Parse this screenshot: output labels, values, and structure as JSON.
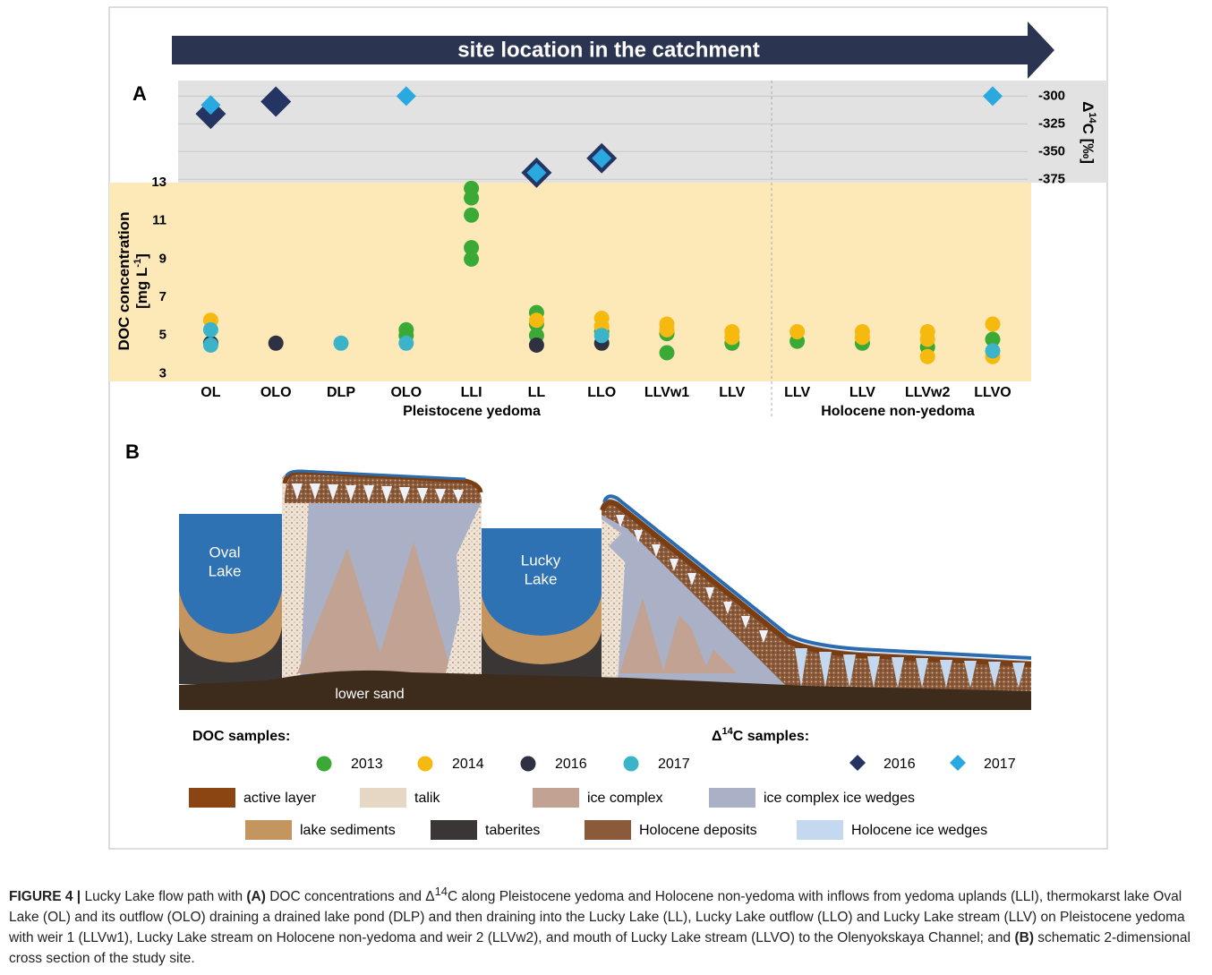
{
  "banner": "site location in the catchment",
  "chart_data": {
    "type": "scatter",
    "panel": "A",
    "categories": [
      "OL",
      "OLO",
      "DLP",
      "OLO",
      "LLI",
      "LL",
      "LLO",
      "LLVw1",
      "LLV",
      "LLV",
      "LLV",
      "LLVw2",
      "LLVO"
    ],
    "groups": [
      "Pleistocene yedoma",
      "Holocene non-yedoma"
    ],
    "ylabel_parts": [
      "DOC concentration",
      "[mg L",
      "-1",
      "]"
    ],
    "y2label_parts": [
      "Δ",
      "14",
      "C [‰]"
    ],
    "ylim": [
      2.6,
      13
    ],
    "yticks": [
      3,
      5,
      7,
      9,
      11,
      13
    ],
    "y2lim": [
      -378,
      -286
    ],
    "y2ticks": [
      -300,
      -325,
      -350,
      -375
    ],
    "grid": true,
    "series": [
      {
        "name": "2013",
        "color": "#3aa935",
        "values": [
          [
            4.6
          ],
          null,
          null,
          [
            5.3,
            5.0
          ],
          [
            12.7,
            12.2,
            11.3,
            9.6,
            9.0
          ],
          [
            6.2,
            5.6,
            5.0
          ],
          [
            5.2
          ],
          [
            5.1,
            4.1
          ],
          [
            4.6
          ],
          [
            4.7
          ],
          [
            4.6
          ],
          [
            4.4
          ],
          [
            4.8
          ]
        ]
      },
      {
        "name": "2014",
        "color": "#f6b90f",
        "values": [
          [
            5.8
          ],
          null,
          null,
          null,
          null,
          [
            5.8
          ],
          [
            5.9,
            5.5
          ],
          [
            5.6,
            5.3
          ],
          [
            5.2,
            4.9
          ],
          [
            5.2
          ],
          [
            5.2,
            4.9
          ],
          [
            5.2,
            4.8,
            3.9
          ],
          [
            5.6,
            3.9
          ]
        ]
      },
      {
        "name": "2016",
        "color": "#2d3142",
        "values": [
          [
            4.6
          ],
          [
            4.6
          ],
          null,
          null,
          null,
          [
            4.5
          ],
          [
            4.6
          ],
          null,
          null,
          null,
          null,
          null,
          null
        ]
      },
      {
        "name": "2017",
        "color": "#3bb3c9",
        "values": [
          [
            5.3,
            4.5
          ],
          null,
          [
            4.6
          ],
          [
            4.6
          ],
          null,
          null,
          [
            5.0
          ],
          null,
          null,
          null,
          null,
          null,
          [
            4.2
          ]
        ]
      },
      {
        "name": "2016",
        "color": "#253563",
        "axis": "y2",
        "marker": "diamond",
        "values": [
          -316,
          -305,
          null,
          null,
          null,
          -369,
          -356,
          null,
          null,
          null,
          null,
          null,
          null
        ]
      },
      {
        "name": "2017",
        "color": "#29a9e0",
        "axis": "y2",
        "marker": "diamond",
        "values": [
          -308,
          null,
          null,
          -300,
          null,
          -369,
          -356,
          null,
          null,
          null,
          null,
          null,
          -300
        ]
      }
    ]
  },
  "diagram": {
    "panel": "B",
    "labels": {
      "oval": [
        "Oval",
        "Lake"
      ],
      "lucky": [
        "Lucky",
        "Lake"
      ],
      "sand": "lower sand"
    }
  },
  "legend": {
    "doc_title": "DOC samples:",
    "c14_title_parts": [
      "Δ",
      "14",
      "C samples:"
    ],
    "layers": [
      {
        "name": "active layer",
        "color": "#8b4513"
      },
      {
        "name": "talik",
        "color": "#e6d6c4"
      },
      {
        "name": "ice complex",
        "color": "#c2a393"
      },
      {
        "name": "ice complex ice wedges",
        "color": "#aab0c6"
      },
      {
        "name": "lake sediments",
        "color": "#c4955f"
      },
      {
        "name": "taberites",
        "color": "#3a3636"
      },
      {
        "name": "Holocene deposits",
        "color": "#8a5a3a"
      },
      {
        "name": "Holocene ice wedges",
        "color": "#c4d9ef"
      }
    ]
  },
  "caption": {
    "parts": [
      "FIGURE 4 |",
      " Lucky Lake flow path with ",
      "(A)",
      " DOC concentrations and Δ",
      "14",
      "C along Pleistocene yedoma and Holocene non-yedoma with inflows from yedoma uplands (LLI), thermokarst lake Oval Lake (OL) and its outflow (OLO) draining a drained lake pond (DLP) and then draining into the Lucky Lake (LL), Lucky Lake outflow (LLO) and Lucky Lake stream (LLV) on Pleistocene yedoma with weir 1 (LLVw1), Lucky Lake stream on Holocene non-yedoma and weir 2 (LLVw2), and mouth of Lucky Lake stream (LLVO) to the Olenyokskaya Channel; and ",
      "(B)",
      " schematic 2-dimensional cross section of the study site."
    ]
  }
}
